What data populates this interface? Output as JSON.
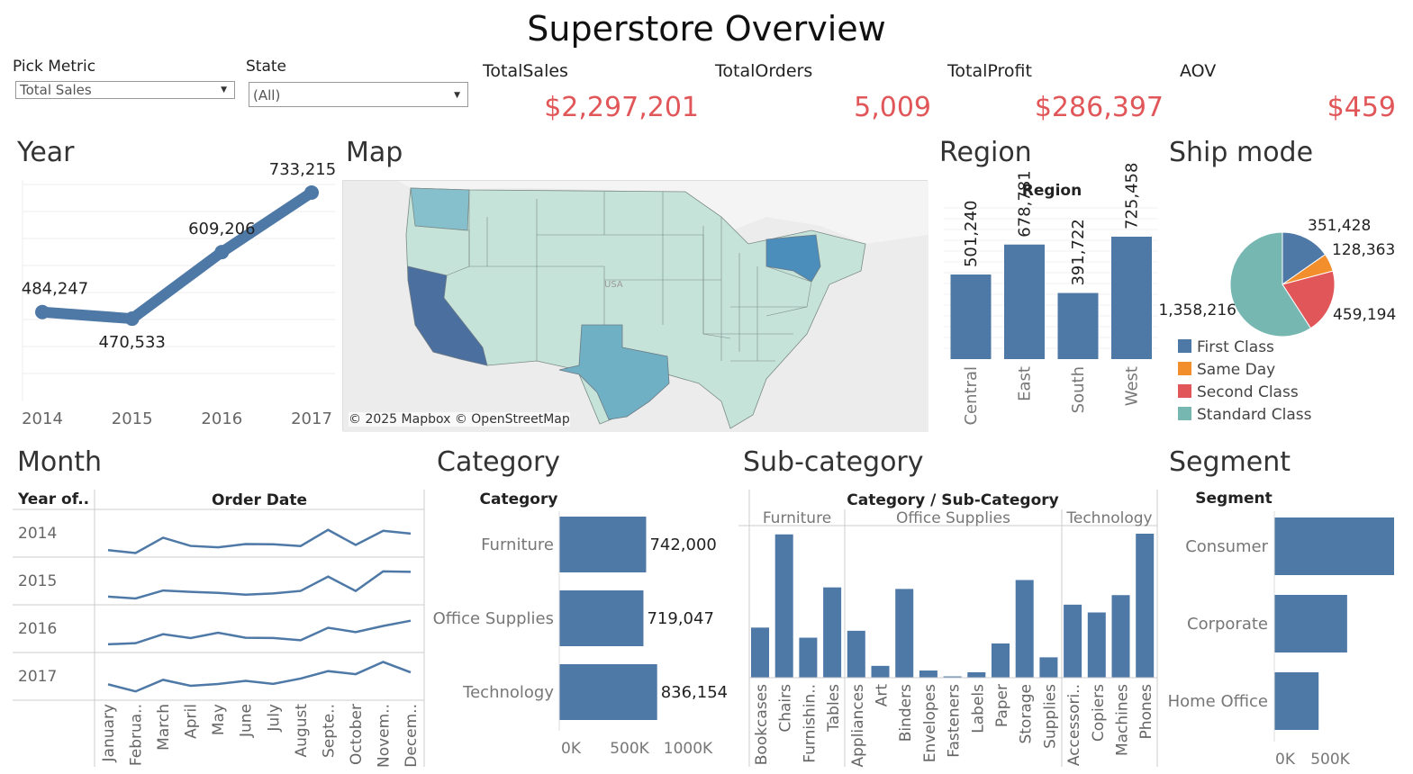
{
  "title": "Superstore Overview",
  "filters": {
    "metric_label": "Pick Metric",
    "metric_value": "Total Sales",
    "state_label": "State",
    "state_value": "(All)"
  },
  "kpis": [
    {
      "label": "TotalSales",
      "value": "$2,297,201"
    },
    {
      "label": "TotalOrders",
      "value": "5,009"
    },
    {
      "label": "TotalProfit",
      "value": "$286,397"
    },
    {
      "label": "AOV",
      "value": "$459"
    }
  ],
  "sections": {
    "year": "Year",
    "map": "Map",
    "region": "Region",
    "ship": "Ship mode",
    "month": "Month",
    "category": "Category",
    "subcategory": "Sub-category",
    "segment": "Segment"
  },
  "map": {
    "attribution": "© 2025 Mapbox © OpenStreetMap",
    "label_usa": "USA"
  },
  "colors": {
    "bar": "#4e79a7",
    "kpi": "#e15759",
    "first_class": "#4e79a7",
    "same_day": "#f28e2b",
    "second_class": "#e15759",
    "standard_class": "#76b7b2"
  },
  "chart_data": [
    {
      "id": "year",
      "type": "line",
      "x": [
        "2014",
        "2015",
        "2016",
        "2017"
      ],
      "values": [
        484247,
        470533,
        609206,
        733215
      ],
      "labels": [
        "484,247",
        "470,533",
        "609,206",
        "733,215"
      ]
    },
    {
      "id": "region",
      "type": "bar",
      "title": "Region",
      "categories": [
        "Central",
        "East",
        "South",
        "West"
      ],
      "values": [
        501240,
        678781,
        391722,
        725458
      ],
      "labels": [
        "501,240",
        "678,781",
        "391,722",
        "725,458"
      ]
    },
    {
      "id": "shipmode",
      "type": "pie",
      "categories": [
        "First Class",
        "Same Day",
        "Second Class",
        "Standard Class"
      ],
      "values": [
        351428,
        128363,
        459194,
        1358216
      ],
      "labels": [
        "351,428",
        "128,363",
        "459,194",
        "1,358,216"
      ]
    },
    {
      "id": "month",
      "type": "line",
      "title": "Order Date",
      "row_header": "Year of..",
      "categories": [
        "January",
        "Februa..",
        "March",
        "April",
        "May",
        "June",
        "July",
        "August",
        "Septe..",
        "October",
        "Novem..",
        "Decem.."
      ],
      "series": [
        {
          "name": "2014",
          "values": [
            14200,
            4500,
            55700,
            28300,
            23600,
            34600,
            33900,
            27900,
            81800,
            31500,
            78600,
            69500
          ]
        },
        {
          "name": "2015",
          "values": [
            18200,
            12000,
            38700,
            34200,
            30900,
            24800,
            28800,
            37300,
            85000,
            37000,
            102500,
            101000
          ]
        },
        {
          "name": "2016",
          "values": [
            18500,
            22000,
            52000,
            39000,
            56900,
            40300,
            39300,
            31800,
            73400,
            59100,
            79400,
            96900
          ]
        },
        {
          "name": "2017",
          "values": [
            43900,
            20300,
            58900,
            39000,
            45000,
            55500,
            45300,
            63100,
            87900,
            77800,
            118400,
            83800
          ]
        }
      ]
    },
    {
      "id": "category",
      "type": "bar",
      "title": "Category",
      "categories": [
        "Furniture",
        "Office Supplies",
        "Technology"
      ],
      "values": [
        742000,
        719047,
        836154
      ],
      "labels": [
        "742,000",
        "719,047",
        "836,154"
      ],
      "x_ticks": [
        "0K",
        "500K",
        "1000K"
      ]
    },
    {
      "id": "subcategory",
      "type": "bar",
      "title": "Category  /  Sub-Category",
      "groups": [
        {
          "name": "Furniture",
          "categories": [
            "Bookcases",
            "Chairs",
            "Furnishin..",
            "Tables"
          ],
          "values": [
            114880,
            328449,
            91705,
            206966
          ]
        },
        {
          "name": "Office Supplies",
          "categories": [
            "Appliances",
            "Art",
            "Binders",
            "Envelopes",
            "Fasteners",
            "Labels",
            "Paper",
            "Storage",
            "Supplies"
          ],
          "values": [
            107532,
            27119,
            203413,
            16476,
            3024,
            12486,
            78479,
            223844,
            46674
          ]
        },
        {
          "name": "Technology",
          "categories": [
            "Accessori..",
            "Copiers",
            "Machines",
            "Phones"
          ],
          "values": [
            167380,
            149528,
            189239,
            330007
          ]
        }
      ]
    },
    {
      "id": "segment",
      "type": "bar",
      "title": "Segment",
      "categories": [
        "Consumer",
        "Corporate",
        "Home Office"
      ],
      "values": [
        1161401,
        706146,
        429653
      ],
      "x_ticks": [
        "0K",
        "500K"
      ]
    }
  ]
}
